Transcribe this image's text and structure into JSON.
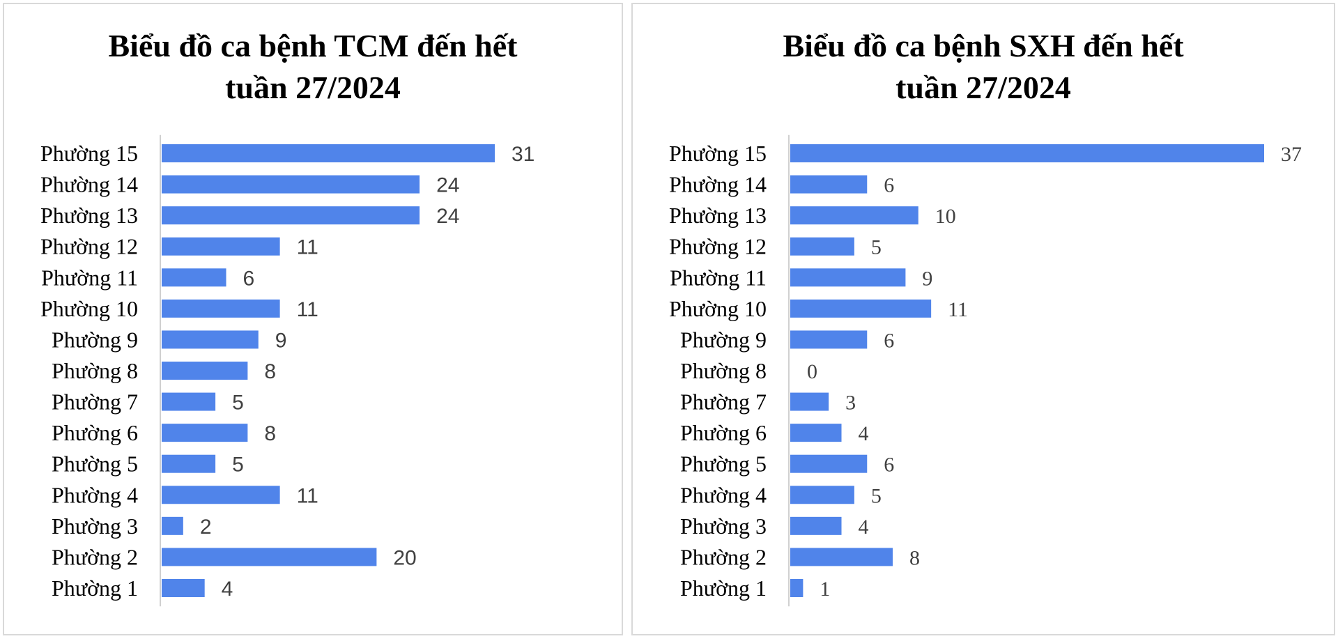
{
  "chart_data": [
    {
      "type": "bar",
      "orientation": "horizontal",
      "title_line1": "Biểu đồ ca bệnh TCM đến hết",
      "title_line2": "tuần 27/2024",
      "categories": [
        "Phường 15",
        "Phường 14",
        "Phường 13",
        "Phường 12",
        "Phường 11",
        "Phường 10",
        "Phường 9",
        "Phường 8",
        "Phường 7",
        "Phường 6",
        "Phường 5",
        "Phường 4",
        "Phường 3",
        "Phường 2",
        "Phường 1"
      ],
      "values": [
        31,
        24,
        24,
        11,
        6,
        11,
        9,
        8,
        5,
        8,
        5,
        11,
        2,
        20,
        4
      ],
      "data_labels": [
        "31",
        "24",
        "24",
        "11",
        "6",
        "11",
        "9",
        "8",
        "5",
        "8",
        "5",
        "11",
        "2",
        "20",
        "4"
      ],
      "bar_color": "#5084ea",
      "xlim": [
        0,
        31
      ],
      "grid": false,
      "legend": "none"
    },
    {
      "type": "bar",
      "orientation": "horizontal",
      "title_line1": "Biểu đồ ca bệnh SXH đến hết",
      "title_line2": "tuần 27/2024",
      "categories": [
        "Phường 15",
        "Phường 14",
        "Phường 13",
        "Phường 12",
        "Phường 11",
        "Phường 10",
        "Phường 9",
        "Phường 8",
        "Phường 7",
        "Phường 6",
        "Phường 5",
        "Phường 4",
        "Phường 3",
        "Phường 2",
        "Phường 1"
      ],
      "values": [
        37,
        6,
        10,
        5,
        9,
        11,
        6,
        0,
        3,
        4,
        6,
        5,
        4,
        8,
        1
      ],
      "data_labels": [
        "37",
        "6",
        "10",
        "5",
        "9",
        "11",
        "6",
        "0",
        "3",
        "4",
        "6",
        "5",
        "4",
        "8",
        "1"
      ],
      "bar_color": "#5084ea",
      "xlim": [
        0,
        37
      ],
      "grid": false,
      "legend": "none"
    }
  ]
}
